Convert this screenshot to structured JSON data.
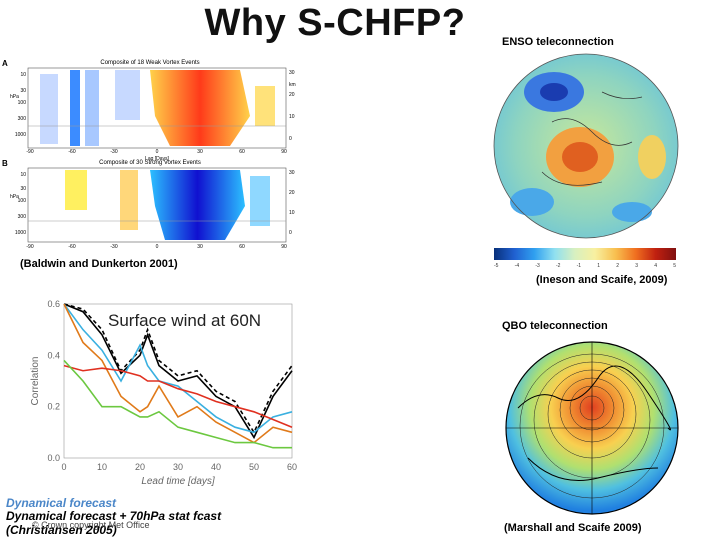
{
  "title": "Why S-CHFP?",
  "vortex_panel": {
    "label_a": "A",
    "label_b": "B",
    "title_a": "Composite of 18 Weak Vortex Events",
    "title_b": "Composite of 30 Strong Vortex Events",
    "unit_hpa": "hPa",
    "unit_km": "km",
    "lag_label": "Lag [Days]",
    "x_ticks": [
      "-90",
      "-60",
      "-30",
      "0",
      "30",
      "60",
      "90"
    ],
    "y_ticks": [
      "10",
      "30",
      "100",
      "300",
      "1000"
    ],
    "km_ticks": [
      "30",
      "20",
      "10",
      "0"
    ],
    "citation": "(Baldwin and Dunkerton 2001)"
  },
  "enso_panel": {
    "header": "ENSO teleconnection",
    "citation": "(Ineson and Scaife, 2009)",
    "colorbar_ticks": [
      "-5",
      "-4",
      "-3",
      "-2",
      "-1",
      "1",
      "2",
      "3",
      "4",
      "5"
    ]
  },
  "qbo_panel": {
    "header": "QBO teleconnection",
    "citation": "(Marshall and Scaife 2009)"
  },
  "wind_chart": {
    "legend_line1": "Dynamical forecast",
    "legend_line2": "Dynamical forecast + 70hPa stat fcast",
    "citation": "(Christiansen 2005)",
    "copyright": "© Crown copyright  Met Office"
  },
  "chart_data": {
    "type": "line",
    "title": "Surface wind at 60N",
    "xlabel": "Lead time [days]",
    "ylabel": "Correlation",
    "xlim": [
      0,
      60
    ],
    "ylim": [
      0,
      0.6
    ],
    "x_ticks": [
      0,
      10,
      20,
      30,
      40,
      50,
      60
    ],
    "y_ticks": [
      0.0,
      0.2,
      0.4,
      0.6
    ],
    "grid": false,
    "x": [
      0,
      5,
      10,
      15,
      20,
      22,
      25,
      30,
      35,
      40,
      45,
      50,
      55,
      60
    ],
    "series": [
      {
        "color": "#000000",
        "dash": "4,3",
        "values": [
          0.6,
          0.58,
          0.5,
          0.34,
          0.42,
          0.5,
          0.38,
          0.32,
          0.34,
          0.26,
          0.22,
          0.1,
          0.26,
          0.36
        ]
      },
      {
        "color": "#000000",
        "dash": "",
        "values": [
          0.6,
          0.57,
          0.48,
          0.33,
          0.4,
          0.48,
          0.36,
          0.3,
          0.32,
          0.24,
          0.2,
          0.08,
          0.24,
          0.34
        ]
      },
      {
        "color": "#3ab0e0",
        "dash": "",
        "values": [
          0.6,
          0.5,
          0.42,
          0.3,
          0.44,
          0.36,
          0.3,
          0.28,
          0.22,
          0.16,
          0.12,
          0.1,
          0.16,
          0.18
        ]
      },
      {
        "color": "#e07a1a",
        "dash": "",
        "values": [
          0.6,
          0.45,
          0.38,
          0.24,
          0.18,
          0.2,
          0.28,
          0.16,
          0.2,
          0.14,
          0.1,
          0.06,
          0.12,
          0.1
        ]
      },
      {
        "color": "#e03020",
        "dash": "",
        "values": [
          0.36,
          0.34,
          0.35,
          0.34,
          0.32,
          0.3,
          0.3,
          0.27,
          0.25,
          0.22,
          0.2,
          0.18,
          0.15,
          0.12
        ]
      },
      {
        "color": "#6cc840",
        "dash": "",
        "values": [
          0.38,
          0.3,
          0.2,
          0.2,
          0.16,
          0.16,
          0.18,
          0.12,
          0.1,
          0.08,
          0.06,
          0.06,
          0.04,
          0.04
        ]
      }
    ]
  }
}
